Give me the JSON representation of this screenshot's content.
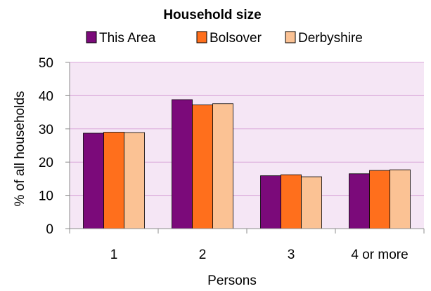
{
  "chart_data": {
    "type": "bar",
    "title": "Household size",
    "xlabel": "Persons",
    "ylabel": "% of all households",
    "categories": [
      "1",
      "2",
      "3",
      "4 or more"
    ],
    "series": [
      {
        "name": "This Area",
        "values": [
          28.7,
          38.8,
          15.9,
          16.5
        ],
        "color": "#7b0a7a"
      },
      {
        "name": "Bolsover",
        "values": [
          29.0,
          37.2,
          16.2,
          17.5
        ],
        "color": "#ff6f1c"
      },
      {
        "name": "Derbyshire",
        "values": [
          28.9,
          37.6,
          15.6,
          17.7
        ],
        "color": "#fbc294"
      }
    ],
    "ylim": [
      0,
      50
    ],
    "yticks": [
      "0",
      "10",
      "20",
      "30",
      "40",
      "50"
    ],
    "legend": "top",
    "grid": true,
    "plot_background": "#f5e6f5",
    "gridline_color": "#d9a6d9"
  }
}
